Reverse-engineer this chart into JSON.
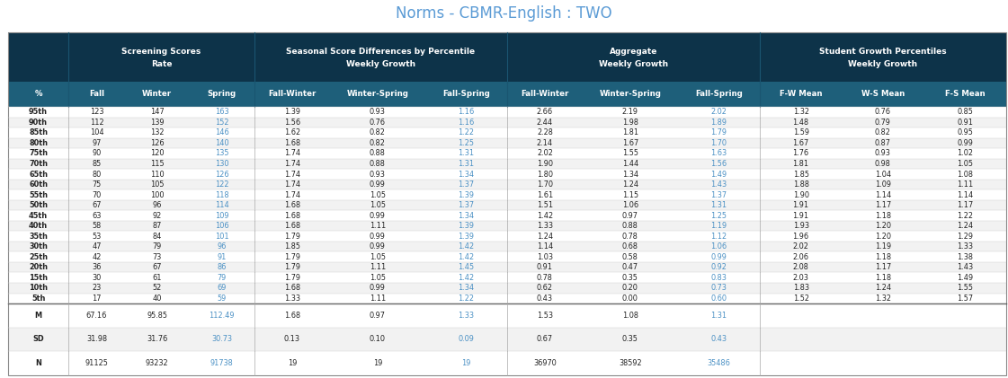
{
  "title": "Norms - CBMR-English : TWO",
  "title_color": "#5b9bd5",
  "header_bg": "#0d3349",
  "subheader_bg": "#1e5f7a",
  "header_text_color": "#ffffff",
  "data_text_color": "#222222",
  "blue_text_color": "#4a90c4",
  "col_headers": [
    "%",
    "Fall",
    "Winter",
    "Spring",
    "Fall-Winter",
    "Winter-Spring",
    "Fall-Spring",
    "Fall-Winter",
    "Winter-Spring",
    "Fall-Spring",
    "F-W Mean",
    "W-S Mean",
    "F-S Mean"
  ],
  "group_header_labels": [
    "Screening Scores\nRate",
    "Seasonal Score Differences by Percentile\nWeekly Growth",
    "Aggregate\nWeekly Growth",
    "Student Growth Percentiles\nWeekly Growth"
  ],
  "group_spans": [
    3,
    3,
    3,
    3
  ],
  "rows": [
    [
      "95th",
      "123",
      "147",
      "163",
      "1.39",
      "0.93",
      "1.16",
      "2.66",
      "2.19",
      "2.02",
      "1.32",
      "0.76",
      "0.85"
    ],
    [
      "90th",
      "112",
      "139",
      "152",
      "1.56",
      "0.76",
      "1.16",
      "2.44",
      "1.98",
      "1.89",
      "1.48",
      "0.79",
      "0.91"
    ],
    [
      "85th",
      "104",
      "132",
      "146",
      "1.62",
      "0.82",
      "1.22",
      "2.28",
      "1.81",
      "1.79",
      "1.59",
      "0.82",
      "0.95"
    ],
    [
      "80th",
      "97",
      "126",
      "140",
      "1.68",
      "0.82",
      "1.25",
      "2.14",
      "1.67",
      "1.70",
      "1.67",
      "0.87",
      "0.99"
    ],
    [
      "75th",
      "90",
      "120",
      "135",
      "1.74",
      "0.88",
      "1.31",
      "2.02",
      "1.55",
      "1.63",
      "1.76",
      "0.93",
      "1.02"
    ],
    [
      "70th",
      "85",
      "115",
      "130",
      "1.74",
      "0.88",
      "1.31",
      "1.90",
      "1.44",
      "1.56",
      "1.81",
      "0.98",
      "1.05"
    ],
    [
      "65th",
      "80",
      "110",
      "126",
      "1.74",
      "0.93",
      "1.34",
      "1.80",
      "1.34",
      "1.49",
      "1.85",
      "1.04",
      "1.08"
    ],
    [
      "60th",
      "75",
      "105",
      "122",
      "1.74",
      "0.99",
      "1.37",
      "1.70",
      "1.24",
      "1.43",
      "1.88",
      "1.09",
      "1.11"
    ],
    [
      "55th",
      "70",
      "100",
      "118",
      "1.74",
      "1.05",
      "1.39",
      "1.61",
      "1.15",
      "1.37",
      "1.90",
      "1.14",
      "1.14"
    ],
    [
      "50th",
      "67",
      "96",
      "114",
      "1.68",
      "1.05",
      "1.37",
      "1.51",
      "1.06",
      "1.31",
      "1.91",
      "1.17",
      "1.17"
    ],
    [
      "45th",
      "63",
      "92",
      "109",
      "1.68",
      "0.99",
      "1.34",
      "1.42",
      "0.97",
      "1.25",
      "1.91",
      "1.18",
      "1.22"
    ],
    [
      "40th",
      "58",
      "87",
      "106",
      "1.68",
      "1.11",
      "1.39",
      "1.33",
      "0.88",
      "1.19",
      "1.93",
      "1.20",
      "1.24"
    ],
    [
      "35th",
      "53",
      "84",
      "101",
      "1.79",
      "0.99",
      "1.39",
      "1.24",
      "0.78",
      "1.12",
      "1.96",
      "1.20",
      "1.29"
    ],
    [
      "30th",
      "47",
      "79",
      "96",
      "1.85",
      "0.99",
      "1.42",
      "1.14",
      "0.68",
      "1.06",
      "2.02",
      "1.19",
      "1.33"
    ],
    [
      "25th",
      "42",
      "73",
      "91",
      "1.79",
      "1.05",
      "1.42",
      "1.03",
      "0.58",
      "0.99",
      "2.06",
      "1.18",
      "1.38"
    ],
    [
      "20th",
      "36",
      "67",
      "86",
      "1.79",
      "1.11",
      "1.45",
      "0.91",
      "0.47",
      "0.92",
      "2.08",
      "1.17",
      "1.43"
    ],
    [
      "15th",
      "30",
      "61",
      "79",
      "1.79",
      "1.05",
      "1.42",
      "0.78",
      "0.35",
      "0.83",
      "2.03",
      "1.18",
      "1.49"
    ],
    [
      "10th",
      "23",
      "52",
      "69",
      "1.68",
      "0.99",
      "1.34",
      "0.62",
      "0.20",
      "0.73",
      "1.83",
      "1.24",
      "1.55"
    ],
    [
      "5th",
      "17",
      "40",
      "59",
      "1.33",
      "1.11",
      "1.22",
      "0.43",
      "0.00",
      "0.60",
      "1.52",
      "1.32",
      "1.57"
    ]
  ],
  "summary_rows": [
    [
      "M",
      "67.16",
      "95.85",
      "112.49",
      "1.68",
      "0.97",
      "1.33",
      "1.53",
      "1.08",
      "1.31",
      "",
      "",
      ""
    ],
    [
      "SD",
      "31.98",
      "31.76",
      "30.73",
      "0.13",
      "0.10",
      "0.09",
      "0.67",
      "0.35",
      "0.43",
      "",
      "",
      ""
    ],
    [
      "N",
      "91125",
      "93232",
      "91738",
      "19",
      "19",
      "19",
      "36970",
      "38592",
      "35486",
      "",
      "",
      ""
    ]
  ],
  "blue_cols": [
    3,
    6,
    9
  ],
  "figsize": [
    11.21,
    4.21
  ],
  "dpi": 100
}
